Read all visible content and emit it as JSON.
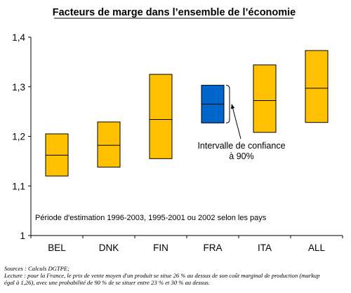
{
  "chart_data": {
    "type": "box",
    "title": "Facteurs de marge dans l’ensemble de l’économie",
    "categories": [
      "BEL",
      "DNK",
      "FIN",
      "FRA",
      "ITA",
      "ALL"
    ],
    "series": [
      {
        "low": 1.12,
        "mid": 1.162,
        "high": 1.205
      },
      {
        "low": 1.138,
        "mid": 1.182,
        "high": 1.229
      },
      {
        "low": 1.155,
        "mid": 1.234,
        "high": 1.325
      },
      {
        "low": 1.227,
        "mid": 1.265,
        "high": 1.303
      },
      {
        "low": 1.208,
        "mid": 1.272,
        "high": 1.344
      },
      {
        "low": 1.228,
        "mid": 1.297,
        "high": 1.373
      }
    ],
    "y_ticks": [
      "1",
      "1,1",
      "1,2",
      "1,3",
      "1,4"
    ],
    "ylim": [
      1.0,
      1.4
    ],
    "highlight_category": "FRA",
    "annotation": [
      "Intervalle de confiance",
      "à 90%"
    ],
    "note": "Période d'estimation 1996-2003, 1995-2001 ou 2002 selon les pays",
    "colors": {
      "box": "#ffc000",
      "highlight": "#0066cc",
      "stroke": "#000000"
    },
    "grid": false
  },
  "footer": {
    "sources": "Sources : Calculs DGTPE;",
    "lecture_1": "Lecture : pour la France, le prix de vente moyen d'un produit se situe 26 % au dessus de son coût marginal de production (markup",
    "lecture_2": "égal à 1,26), avec une probabilité de 90 % de se situer entre 23 % et 30 % au dessus."
  }
}
